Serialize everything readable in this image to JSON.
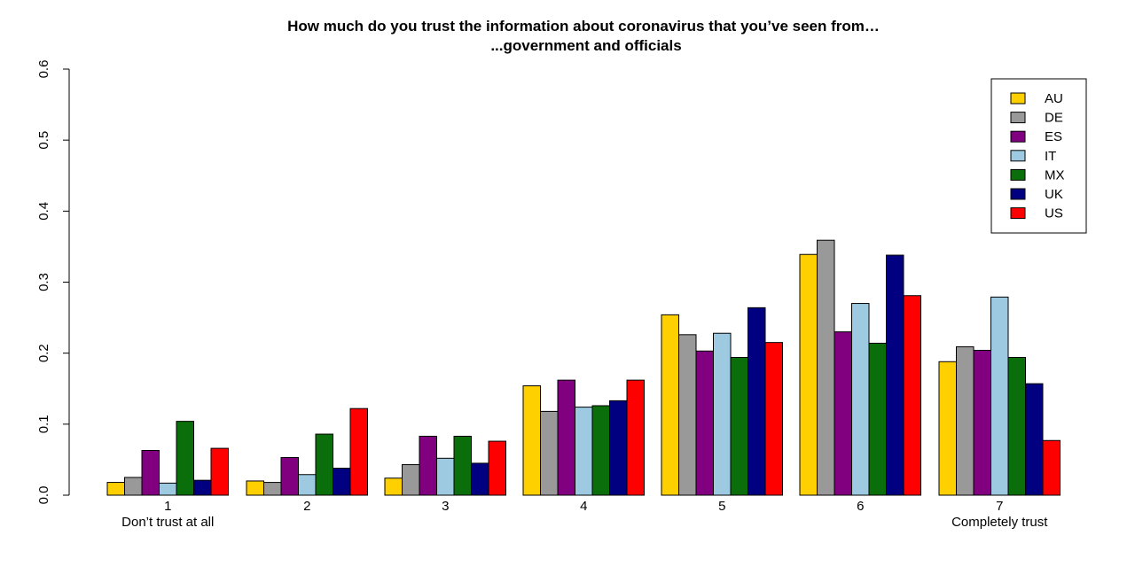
{
  "chart_data": {
    "type": "bar",
    "title_line1": "How much do you trust the information about coronavirus that you’ve seen from…",
    "title_line2": "...government and officials",
    "xlabel": "",
    "ylabel": "",
    "ylim": [
      0,
      0.6
    ],
    "yticks": [
      "0.0",
      "0.1",
      "0.2",
      "0.3",
      "0.4",
      "0.5",
      "0.6"
    ],
    "categories": [
      "1",
      "2",
      "3",
      "4",
      "5",
      "6",
      "7"
    ],
    "category_sublabels": [
      "Don’t trust at all",
      "",
      "",
      "",
      "",
      "",
      "Completely trust"
    ],
    "legend_position": "top-right",
    "grid": false,
    "series": [
      {
        "name": "AU",
        "color": "#FFD000",
        "values": [
          0.018,
          0.02,
          0.024,
          0.154,
          0.254,
          0.339,
          0.188
        ]
      },
      {
        "name": "DE",
        "color": "#999999",
        "values": [
          0.025,
          0.018,
          0.043,
          0.118,
          0.226,
          0.359,
          0.209
        ]
      },
      {
        "name": "ES",
        "color": "#800080",
        "values": [
          0.063,
          0.053,
          0.083,
          0.162,
          0.203,
          0.23,
          0.204
        ]
      },
      {
        "name": "IT",
        "color": "#9ECAE1",
        "values": [
          0.017,
          0.029,
          0.052,
          0.124,
          0.228,
          0.27,
          0.279
        ]
      },
      {
        "name": "MX",
        "color": "#0A6E0A",
        "values": [
          0.104,
          0.086,
          0.083,
          0.126,
          0.194,
          0.214,
          0.194
        ]
      },
      {
        "name": "UK",
        "color": "#000080",
        "values": [
          0.021,
          0.038,
          0.045,
          0.133,
          0.264,
          0.338,
          0.157
        ]
      },
      {
        "name": "US",
        "color": "#FF0000",
        "values": [
          0.066,
          0.122,
          0.076,
          0.162,
          0.215,
          0.281,
          0.077
        ]
      }
    ]
  }
}
